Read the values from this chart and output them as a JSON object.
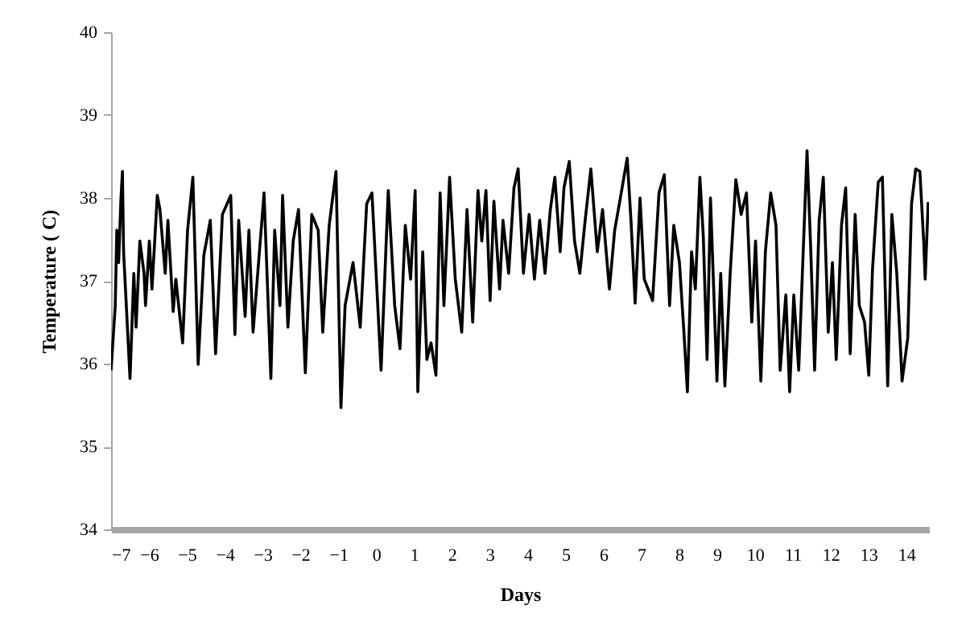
{
  "chart_data": {
    "type": "line",
    "xlabel": "Days",
    "ylabel": "Temperature ( C)",
    "color": "#000000",
    "x": [
      -7.0,
      -6.89,
      -6.85,
      -6.8,
      -6.74,
      -6.7,
      -6.67,
      -6.5,
      -6.4,
      -6.34,
      -6.24,
      -6.13,
      -6.09,
      -5.99,
      -5.92,
      -5.78,
      -5.71,
      -5.57,
      -5.5,
      -5.36,
      -5.29,
      -5.11,
      -4.98,
      -4.84,
      -4.7,
      -4.55,
      -4.38,
      -4.24,
      -4.06,
      -3.84,
      -3.73,
      -3.63,
      -3.46,
      -3.36,
      -3.25,
      -2.96,
      -2.78,
      -2.68,
      -2.54,
      -2.47,
      -2.33,
      -2.19,
      -2.05,
      -1.87,
      -1.7,
      -1.53,
      -1.41,
      -1.24,
      -1.06,
      -0.93,
      -0.82,
      -0.61,
      -0.42,
      -0.25,
      -0.11,
      0.13,
      0.32,
      0.49,
      0.63,
      0.77,
      0.91,
      1.03,
      1.1,
      1.23,
      1.34,
      1.45,
      1.58,
      1.69,
      1.79,
      1.94,
      2.09,
      2.26,
      2.4,
      2.55,
      2.69,
      2.79,
      2.9,
      3.01,
      3.11,
      3.26,
      3.35,
      3.5,
      3.64,
      3.75,
      3.89,
      4.04,
      4.18,
      4.32,
      4.46,
      4.6,
      4.72,
      4.86,
      4.96,
      5.1,
      5.24,
      5.38,
      5.52,
      5.67,
      5.84,
      5.98,
      6.16,
      6.3,
      6.45,
      6.63,
      6.73,
      6.84,
      6.97,
      7.08,
      7.3,
      7.47,
      7.61,
      7.75,
      7.86,
      8.01,
      8.12,
      8.22,
      8.33,
      8.43,
      8.55,
      8.64,
      8.74,
      8.83,
      9.0,
      9.1,
      9.21,
      9.35,
      9.5,
      9.64,
      9.78,
      9.92,
      10.02,
      10.16,
      10.28,
      10.42,
      10.56,
      10.67,
      10.82,
      10.92,
      11.03,
      11.16,
      11.3,
      11.38,
      11.48,
      11.58,
      11.7,
      11.81,
      11.94,
      12.05,
      12.15,
      12.29,
      12.4,
      12.52,
      12.65,
      12.76,
      12.9,
      13.01,
      13.11,
      13.26,
      13.37,
      13.51,
      13.62,
      13.75,
      13.89,
      14.04,
      14.14,
      14.25,
      14.36,
      14.46,
      14.5,
      14.58
    ],
    "values": [
      35.92,
      36.7,
      37.61,
      37.22,
      37.99,
      38.32,
      37.35,
      35.82,
      37.09,
      36.44,
      37.48,
      37.09,
      36.7,
      37.48,
      36.9,
      38.03,
      37.86,
      37.09,
      37.73,
      36.63,
      37.02,
      36.25,
      37.61,
      38.25,
      35.99,
      37.31,
      37.73,
      36.12,
      37.8,
      38.03,
      36.35,
      37.73,
      36.57,
      37.61,
      36.38,
      38.06,
      35.82,
      37.61,
      36.7,
      38.03,
      36.44,
      37.48,
      37.86,
      35.89,
      37.8,
      37.61,
      36.38,
      37.67,
      38.32,
      35.47,
      36.7,
      37.22,
      36.44,
      37.93,
      38.06,
      35.92,
      38.09,
      36.7,
      36.18,
      37.67,
      37.02,
      38.09,
      35.66,
      37.35,
      36.05,
      36.25,
      35.86,
      38.06,
      36.7,
      38.25,
      37.02,
      36.38,
      37.86,
      36.5,
      38.09,
      37.48,
      38.09,
      36.76,
      37.96,
      36.9,
      37.73,
      37.09,
      38.12,
      38.35,
      37.09,
      37.8,
      37.02,
      37.73,
      37.09,
      37.86,
      38.25,
      37.35,
      38.12,
      38.44,
      37.48,
      37.09,
      37.73,
      38.35,
      37.35,
      37.86,
      36.9,
      37.61,
      38.0,
      38.48,
      37.73,
      36.73,
      38.0,
      37.02,
      36.76,
      38.06,
      38.28,
      36.7,
      37.67,
      37.22,
      36.44,
      35.66,
      37.35,
      36.9,
      38.25,
      37.54,
      36.05,
      38.0,
      35.79,
      37.09,
      35.73,
      37.09,
      38.22,
      37.8,
      38.06,
      36.5,
      37.48,
      35.79,
      37.35,
      38.06,
      37.67,
      35.92,
      36.83,
      35.66,
      36.83,
      35.92,
      37.61,
      38.57,
      37.35,
      35.92,
      37.73,
      38.25,
      36.38,
      37.22,
      36.05,
      37.67,
      38.12,
      36.12,
      37.8,
      36.7,
      36.5,
      35.86,
      37.15,
      38.19,
      38.25,
      35.73,
      37.8,
      37.09,
      35.79,
      36.31,
      37.93,
      38.35,
      38.32,
      37.48,
      37.02,
      37.95
    ],
    "xlim": [
      -7,
      14.6
    ],
    "ylim": [
      34,
      40
    ],
    "xticks": [
      -7,
      -6,
      -5,
      -4,
      -3,
      -2,
      -1,
      0,
      1,
      2,
      3,
      4,
      5,
      6,
      7,
      8,
      9,
      10,
      11,
      12,
      13,
      14
    ],
    "yticks": [
      34,
      35,
      36,
      37,
      38,
      39,
      40
    ]
  }
}
